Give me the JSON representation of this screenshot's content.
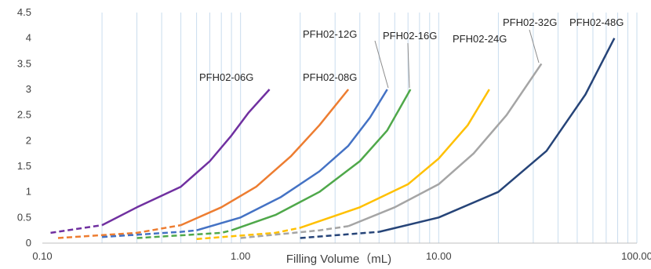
{
  "chart_data": {
    "type": "line",
    "xlabel": "Filling Volume（mL)",
    "ylabel": "",
    "x_scale": "log",
    "xlim": [
      0.1,
      100
    ],
    "ylim": [
      0,
      4.5
    ],
    "x_ticks": [
      "0.10",
      "1.00",
      "10.00",
      "100.00"
    ],
    "y_ticks": [
      "0",
      "0.5",
      "1",
      "1.5",
      "2",
      "2.5",
      "3",
      "3.5",
      "4",
      "4.5"
    ],
    "grid": "vertical minor and major lines",
    "series": [
      {
        "name": "PFH02-06G",
        "color": "#7030a0",
        "dashed_x": [
          0.11,
          0.2
        ],
        "dashed_y": [
          0.2,
          0.35
        ],
        "solid_x": [
          0.2,
          0.3,
          0.5,
          0.7,
          0.9,
          1.1,
          1.4
        ],
        "solid_y": [
          0.35,
          0.7,
          1.1,
          1.6,
          2.1,
          2.55,
          3.0
        ]
      },
      {
        "name": "PFH02-08G",
        "color": "#ed7d31",
        "dashed_x": [
          0.12,
          0.3,
          0.5
        ],
        "dashed_y": [
          0.1,
          0.2,
          0.35
        ],
        "solid_x": [
          0.5,
          0.8,
          1.2,
          1.8,
          2.5,
          3.5
        ],
        "solid_y": [
          0.35,
          0.7,
          1.1,
          1.7,
          2.3,
          3.0
        ]
      },
      {
        "name": "PFH02-12G",
        "color": "#4472c4",
        "dashed_x": [
          0.2,
          0.5,
          0.6
        ],
        "dashed_y": [
          0.12,
          0.22,
          0.25
        ],
        "solid_x": [
          0.6,
          1.0,
          1.6,
          2.5,
          3.5,
          4.5,
          5.5
        ],
        "solid_y": [
          0.25,
          0.5,
          0.9,
          1.4,
          1.9,
          2.45,
          3.0
        ]
      },
      {
        "name": "PFH02-16G",
        "color": "#4fa84a",
        "dashed_x": [
          0.3,
          0.8,
          0.9
        ],
        "dashed_y": [
          0.1,
          0.2,
          0.25
        ],
        "solid_x": [
          0.9,
          1.5,
          2.5,
          4.0,
          5.5,
          7.2
        ],
        "solid_y": [
          0.25,
          0.55,
          1.0,
          1.6,
          2.2,
          3.0
        ]
      },
      {
        "name": "PFH02-24G",
        "color": "#ffc000",
        "dashed_x": [
          0.6,
          1.5,
          2.0
        ],
        "dashed_y": [
          0.08,
          0.2,
          0.3
        ],
        "solid_x": [
          2.0,
          4.0,
          7.0,
          10.0,
          14.0,
          18.0
        ],
        "solid_y": [
          0.3,
          0.7,
          1.15,
          1.65,
          2.3,
          3.0
        ]
      },
      {
        "name": "PFH02-32G",
        "color": "#a5a5a5",
        "dashed_x": [
          1.0,
          2.5,
          3.5
        ],
        "dashed_y": [
          0.1,
          0.25,
          0.33
        ],
        "solid_x": [
          3.5,
          6.0,
          10.0,
          15.0,
          22.0,
          33.0
        ],
        "solid_y": [
          0.33,
          0.7,
          1.15,
          1.75,
          2.5,
          3.5
        ]
      },
      {
        "name": "PFH02-48G",
        "color": "#264478",
        "dashed_x": [
          2.0,
          5.0
        ],
        "dashed_y": [
          0.1,
          0.22
        ],
        "solid_x": [
          5.0,
          10.0,
          20.0,
          35.0,
          55.0,
          77.0
        ],
        "solid_y": [
          0.22,
          0.5,
          1.0,
          1.8,
          2.9,
          4.0
        ]
      }
    ],
    "annotations": [
      {
        "text": "PFH02-06G"
      },
      {
        "text": "PFH02-08G"
      },
      {
        "text": "PFH02-12G"
      },
      {
        "text": "PFH02-16G"
      },
      {
        "text": "PFH02-24G"
      },
      {
        "text": "PFH02-32G"
      },
      {
        "text": "PFH02-48G"
      }
    ]
  }
}
